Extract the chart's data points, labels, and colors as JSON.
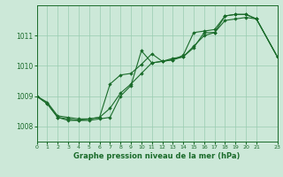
{
  "background_color": "#cce8d8",
  "grid_color": "#99ccb0",
  "line_color": "#1a6b2a",
  "marker_color": "#1a6b2a",
  "xlabel": "Graphe pression niveau de la mer (hPa)",
  "xlim": [
    0,
    23
  ],
  "ylim": [
    1007.5,
    1012.0
  ],
  "yticks": [
    1008,
    1009,
    1010,
    1011
  ],
  "xticks": [
    0,
    1,
    2,
    3,
    4,
    5,
    6,
    7,
    8,
    9,
    10,
    11,
    12,
    13,
    14,
    15,
    16,
    17,
    18,
    19,
    20,
    21,
    23
  ],
  "series": [
    {
      "x": [
        0,
        1,
        2,
        3,
        4,
        5,
        6,
        7,
        8,
        9,
        10,
        11,
        12,
        13,
        14,
        15,
        16,
        17,
        18,
        19,
        20,
        21,
        23
      ],
      "y": [
        1009.0,
        1008.75,
        1008.3,
        1008.25,
        1008.2,
        1008.25,
        1008.3,
        1008.6,
        1009.1,
        1009.4,
        1009.75,
        1010.1,
        1010.15,
        1010.2,
        1010.3,
        1010.65,
        1011.0,
        1011.1,
        1011.5,
        1011.55,
        1011.6,
        1011.55,
        1010.3
      ]
    },
    {
      "x": [
        0,
        1,
        2,
        3,
        4,
        5,
        6,
        7,
        8,
        9,
        10,
        11,
        12,
        13,
        14,
        15,
        16,
        17,
        18,
        19,
        20,
        21,
        23
      ],
      "y": [
        1009.0,
        1008.75,
        1008.3,
        1008.2,
        1008.2,
        1008.2,
        1008.25,
        1008.3,
        1009.0,
        1009.35,
        1010.5,
        1010.1,
        1010.15,
        1010.25,
        1010.3,
        1010.6,
        1011.1,
        1011.1,
        1011.65,
        1011.7,
        1011.7,
        1011.55,
        1010.3
      ]
    },
    {
      "x": [
        0,
        1,
        2,
        3,
        4,
        5,
        6,
        7,
        8,
        9,
        10,
        11,
        12,
        13,
        14,
        15,
        16,
        17,
        18,
        19,
        20,
        21,
        23
      ],
      "y": [
        1009.0,
        1008.8,
        1008.35,
        1008.3,
        1008.25,
        1008.25,
        1008.3,
        1009.4,
        1009.7,
        1009.75,
        1010.05,
        1010.4,
        1010.15,
        1010.2,
        1010.35,
        1011.1,
        1011.15,
        1011.2,
        1011.65,
        1011.7,
        1011.7,
        1011.55,
        1010.3
      ]
    }
  ]
}
